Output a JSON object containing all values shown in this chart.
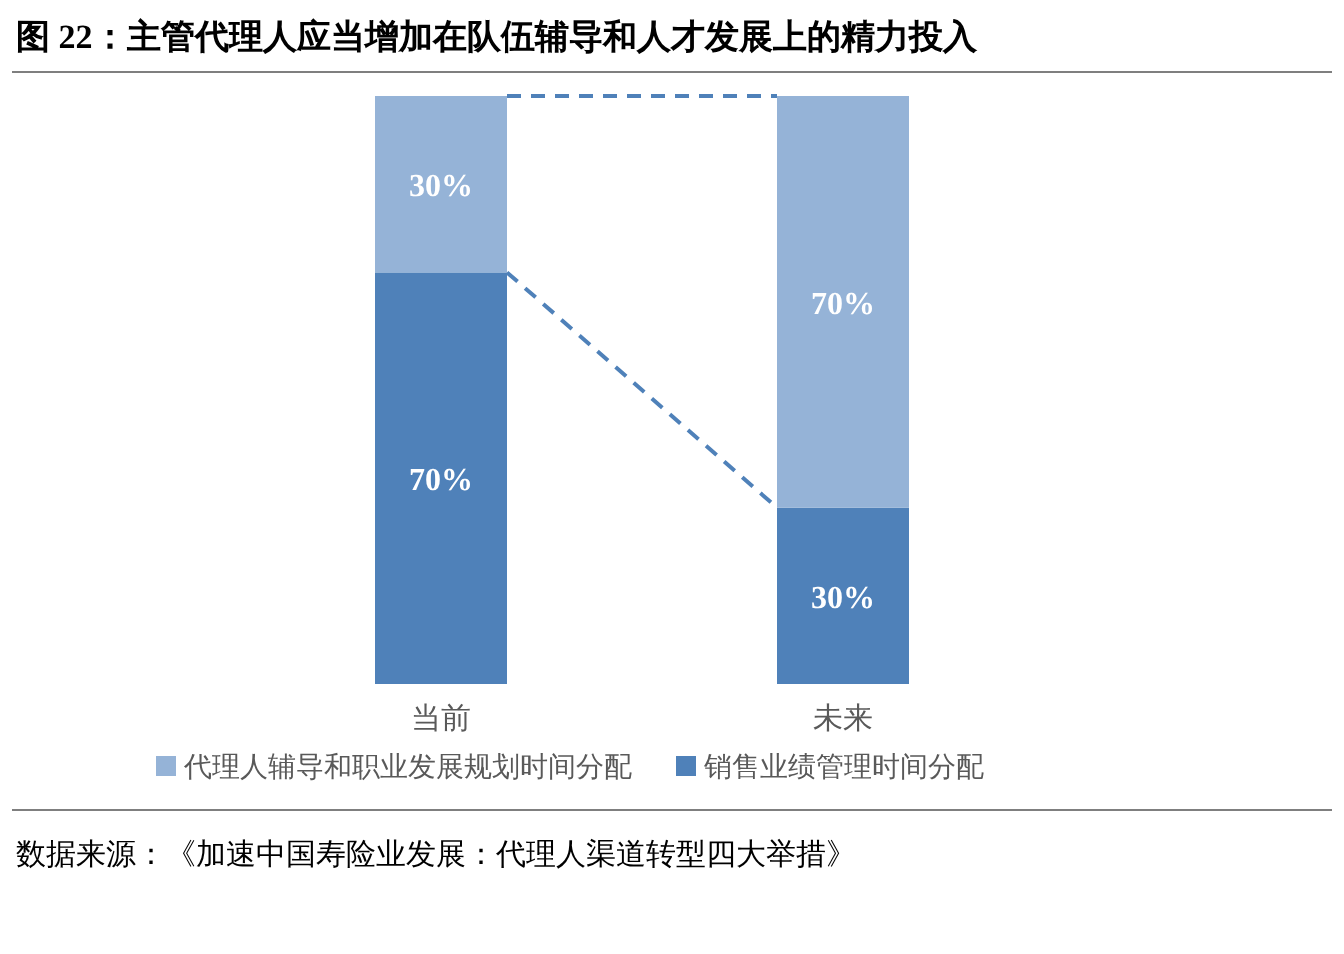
{
  "chart_data": {
    "type": "bar",
    "stacked": true,
    "title": "图 22：主管代理人应当增加在队伍辅导和人才发展上的精力投入",
    "categories": [
      "当前",
      "未来"
    ],
    "series": [
      {
        "name": "销售业绩管理时间分配",
        "color": "#4f81b9",
        "values": [
          70,
          30
        ],
        "value_labels": [
          "70%",
          "30%"
        ]
      },
      {
        "name": "代理人辅导和职业发展规划时间分配",
        "color": "#95b3d7",
        "values": [
          30,
          70
        ],
        "value_labels": [
          "30%",
          "70%"
        ]
      }
    ],
    "legend": "bottom",
    "annotations": [
      "数据来源：《加速中国寿险业发展：代理人渠道转型四大举措》"
    ]
  }
}
